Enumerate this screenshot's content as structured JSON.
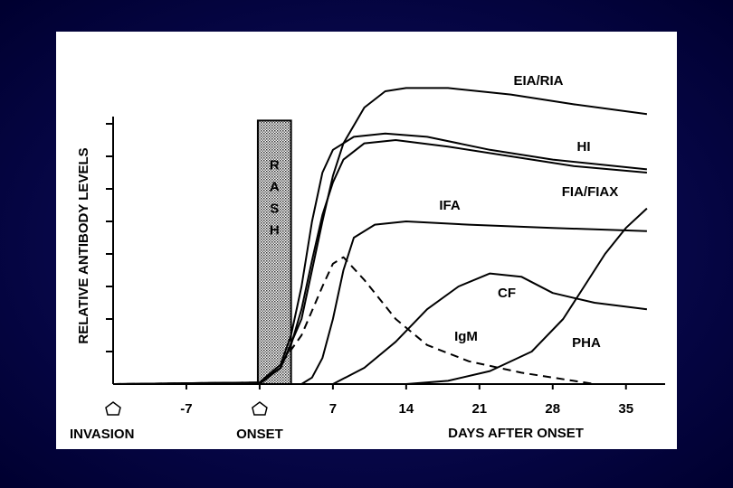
{
  "chart_data": {
    "type": "line",
    "ylabel": "RELATIVE ANTIBODY LEVELS",
    "xlabel": "DAYS AFTER ONSET",
    "xlim": [
      -14,
      39
    ],
    "ylim": [
      0,
      9.5
    ],
    "xticks": [
      -7,
      0,
      7,
      14,
      21,
      28,
      35
    ],
    "yticks": [
      1,
      2,
      3,
      4,
      5,
      6,
      7,
      8
    ],
    "events": [
      {
        "label": "INVASION",
        "x": -14
      },
      {
        "label": "ONSET",
        "x": 0
      }
    ],
    "shaded_region": {
      "label": "RASH",
      "x": [
        0,
        3
      ],
      "y": 8.1
    },
    "series": [
      {
        "name": "EIA/RIA",
        "color": "#000000",
        "dashed": false,
        "x": [
          -14,
          0,
          2,
          4,
          5,
          6,
          7,
          8,
          10,
          12,
          14,
          18,
          24,
          30,
          37
        ],
        "values": [
          0,
          0.05,
          0.5,
          2,
          3.5,
          5,
          6.4,
          7.4,
          8.5,
          9.0,
          9.1,
          9.1,
          8.9,
          8.6,
          8.3
        ]
      },
      {
        "name": "HI",
        "color": "#000000",
        "dashed": false,
        "x": [
          -14,
          0,
          2,
          3,
          4,
          5,
          6,
          7,
          9,
          12,
          16,
          22,
          28,
          37
        ],
        "values": [
          0,
          0.05,
          0.6,
          1.5,
          3,
          5,
          6.5,
          7.2,
          7.6,
          7.7,
          7.6,
          7.2,
          6.9,
          6.6
        ]
      },
      {
        "name": "FIA/FIAX",
        "color": "#000000",
        "dashed": false,
        "x": [
          -14,
          0,
          2,
          3,
          4,
          5,
          6,
          7,
          8,
          10,
          13,
          18,
          24,
          30,
          37
        ],
        "values": [
          0,
          0,
          0.5,
          1.2,
          2.3,
          3.8,
          5.2,
          6.2,
          6.9,
          7.4,
          7.5,
          7.3,
          7.0,
          6.7,
          6.5
        ]
      },
      {
        "name": "IFA",
        "color": "#000000",
        "dashed": false,
        "x": [
          -14,
          4,
          5,
          6,
          7,
          8,
          9,
          11,
          14,
          20,
          28,
          37
        ],
        "values": [
          0,
          0,
          0.2,
          0.8,
          2,
          3.5,
          4.5,
          4.9,
          5.0,
          4.9,
          4.8,
          4.7
        ]
      },
      {
        "name": "CF",
        "color": "#000000",
        "dashed": false,
        "x": [
          -14,
          7,
          10,
          13,
          16,
          19,
          22,
          25,
          28,
          32,
          37
        ],
        "values": [
          0,
          0,
          0.5,
          1.3,
          2.3,
          3,
          3.4,
          3.3,
          2.8,
          2.5,
          2.3
        ]
      },
      {
        "name": "IgM",
        "color": "#000000",
        "dashed": true,
        "x": [
          -14,
          0,
          2,
          4,
          6,
          7,
          8,
          10,
          13,
          16,
          20,
          25,
          30,
          32
        ],
        "values": [
          0,
          0.05,
          0.6,
          1.5,
          3,
          3.7,
          3.9,
          3.2,
          2,
          1.2,
          0.7,
          0.35,
          0.1,
          0
        ]
      },
      {
        "name": "PHA",
        "color": "#000000",
        "dashed": false,
        "x": [
          -14,
          14,
          18,
          22,
          26,
          29,
          31,
          33,
          35,
          37
        ],
        "values": [
          0,
          0,
          0.1,
          0.4,
          1,
          2,
          3,
          4,
          4.8,
          5.4
        ]
      }
    ]
  }
}
